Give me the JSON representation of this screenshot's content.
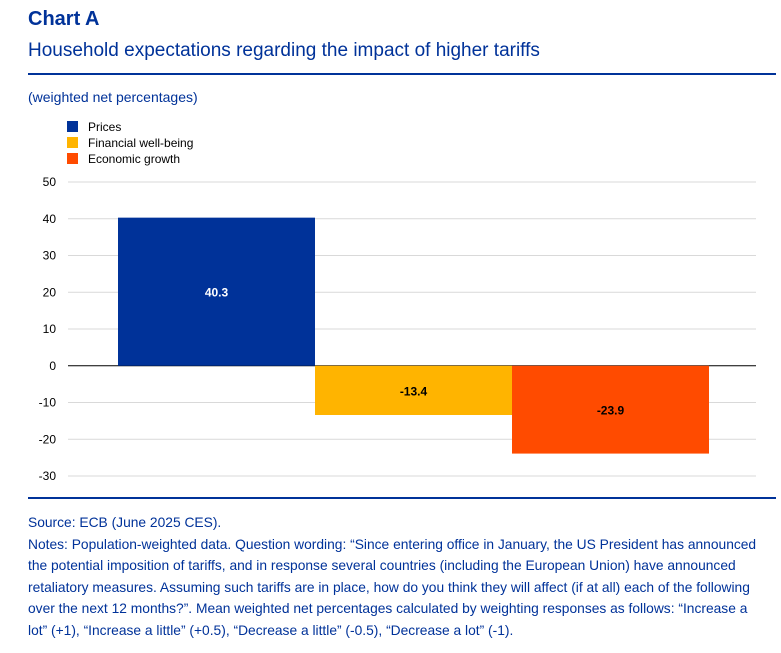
{
  "header": {
    "chart_label": "Chart A",
    "title": "Household expectations regarding the impact of higher tariffs",
    "subtitle": "(weighted net percentages)"
  },
  "chart_data": {
    "type": "bar",
    "title": "Household expectations regarding the impact of higher tariffs",
    "ylabel": "(weighted net percentages)",
    "xlabel": "",
    "categories": [
      "Prices",
      "Financial well-being",
      "Economic growth"
    ],
    "values": [
      40.3,
      -13.4,
      -23.9
    ],
    "data_labels": [
      "40.3",
      "-13.4",
      "-23.9"
    ],
    "colors": [
      "#003299",
      "#FFB400",
      "#FF4B00"
    ],
    "ylim": [
      -30,
      50
    ],
    "yticks": [
      "50",
      "40",
      "30",
      "20",
      "10",
      "0",
      "-10",
      "-20",
      "-30"
    ],
    "grid": true,
    "legend": "top-left"
  },
  "footer": {
    "source": "Source: ECB (June 2025 CES).",
    "notes": "Notes: Population-weighted data. Question wording: “Since entering office in January, the US President has announced the potential imposition of tariffs, and in response several countries (including the European Union) have announced retaliatory measures. Assuming such tariffs are in place, how do you think they will affect (if at all) each of the following over the next 12 months?”. Mean weighted net percentages calculated by weighting responses as follows: “Increase a lot” (+1), “Increase a little” (+0.5), “Decrease a little” (-0.5), “Decrease a lot” (-1)."
  }
}
